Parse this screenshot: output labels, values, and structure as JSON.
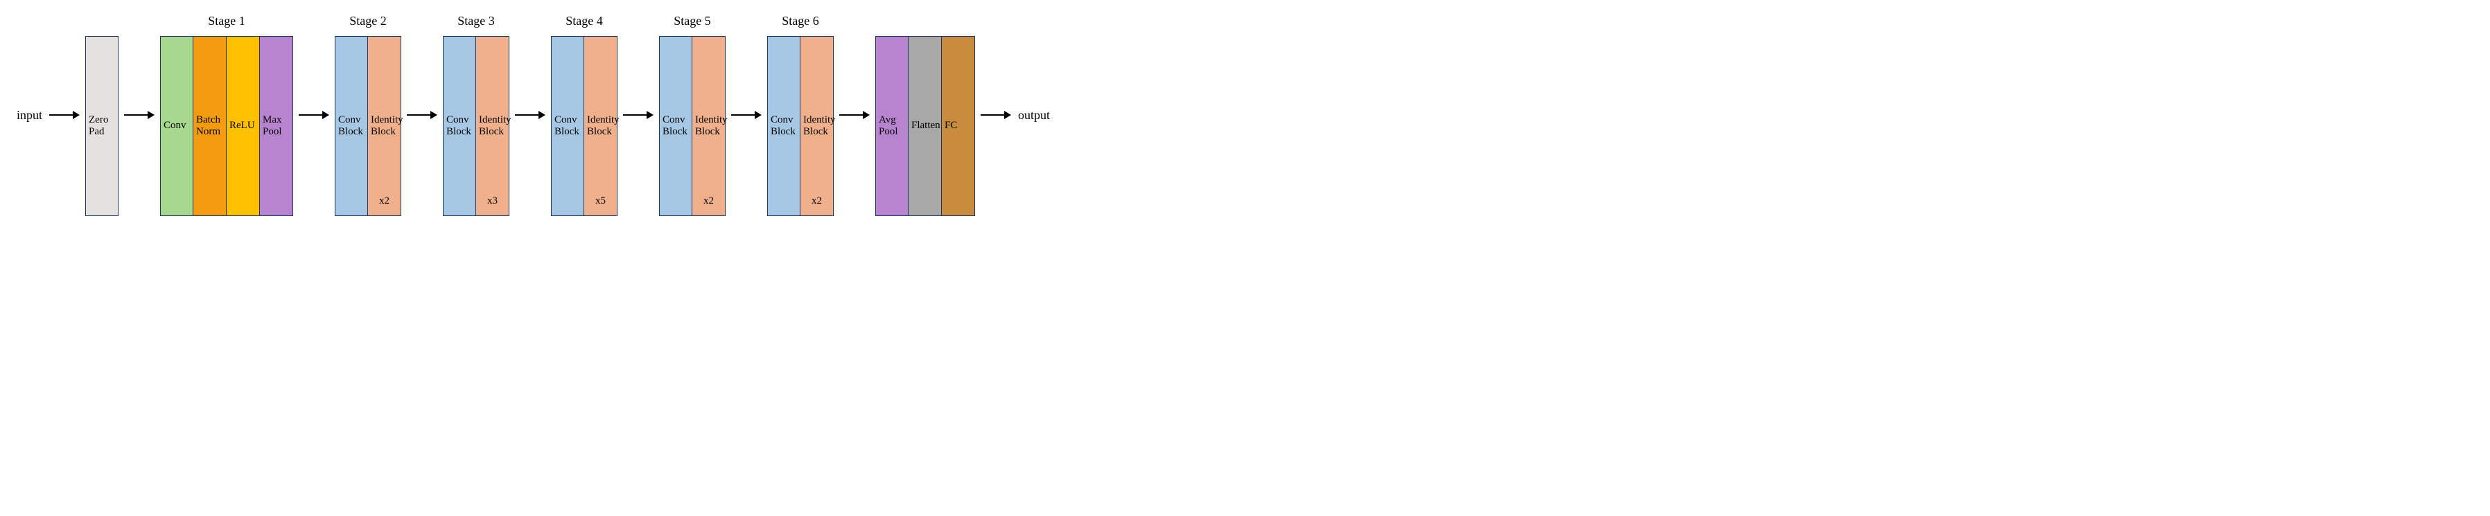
{
  "io": {
    "input": "input",
    "output": "output"
  },
  "colors": {
    "border": "#1b365d",
    "zeroPad": "#e4e2e0",
    "conv": "#a8d88d",
    "batchNorm": "#f39c12",
    "relu": "#ffc000",
    "maxPool": "#b884d0",
    "convBlock": "#a6c8e4",
    "identityBlock": "#f0b08c",
    "avgPool": "#b884d0",
    "flatten": "#a8a8a8",
    "fc": "#c98c3f",
    "text": "#000000"
  },
  "blockWidth": 48,
  "blockHeight": 260,
  "arrowLength": 44,
  "fontSizeLabel": 15,
  "fontSizeStage": 18,
  "groups": [
    {
      "title": "",
      "blocks": [
        {
          "label": "Zero\nPad",
          "colorKey": "zeroPad"
        }
      ]
    },
    {
      "title": "Stage 1",
      "blocks": [
        {
          "label": "Conv",
          "colorKey": "conv"
        },
        {
          "label": "Batch\nNorm",
          "colorKey": "batchNorm"
        },
        {
          "label": "ReLU",
          "colorKey": "relu"
        },
        {
          "label": "Max\nPool",
          "colorKey": "maxPool"
        }
      ]
    },
    {
      "title": "Stage 2",
      "blocks": [
        {
          "label": "Conv\nBlock",
          "colorKey": "convBlock"
        },
        {
          "label": "Identity\nBlock",
          "colorKey": "identityBlock",
          "repeat": "x2"
        }
      ]
    },
    {
      "title": "Stage 3",
      "blocks": [
        {
          "label": "Conv\nBlock",
          "colorKey": "convBlock"
        },
        {
          "label": "Identity\nBlock",
          "colorKey": "identityBlock",
          "repeat": "x3"
        }
      ]
    },
    {
      "title": "Stage 4",
      "blocks": [
        {
          "label": "Conv\nBlock",
          "colorKey": "convBlock"
        },
        {
          "label": "Identity\nBlock",
          "colorKey": "identityBlock",
          "repeat": "x5"
        }
      ]
    },
    {
      "title": "Stage 5",
      "blocks": [
        {
          "label": "Conv\nBlock",
          "colorKey": "convBlock"
        },
        {
          "label": "Identity\nBlock",
          "colorKey": "identityBlock",
          "repeat": "x2"
        }
      ]
    },
    {
      "title": "Stage 6",
      "blocks": [
        {
          "label": "Conv\nBlock",
          "colorKey": "convBlock"
        },
        {
          "label": "Identity\nBlock",
          "colorKey": "identityBlock",
          "repeat": "x2"
        }
      ]
    },
    {
      "title": "",
      "blocks": [
        {
          "label": "Avg\nPool",
          "colorKey": "avgPool"
        },
        {
          "label": "Flatten",
          "colorKey": "flatten"
        },
        {
          "label": "FC",
          "colorKey": "fc"
        }
      ]
    }
  ]
}
